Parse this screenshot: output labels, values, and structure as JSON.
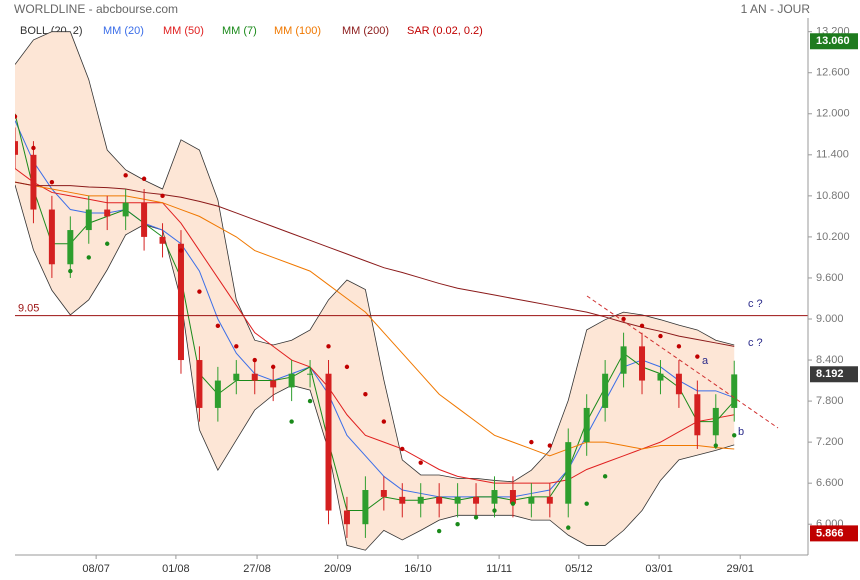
{
  "chart_data": {
    "type": "candlestick",
    "title": "WORLDLINE - abcbourse.com",
    "period": "1 AN - JOUR",
    "x": [
      0,
      4,
      8,
      12,
      16,
      20,
      24,
      28,
      32,
      36,
      40,
      44,
      48,
      52,
      56,
      60,
      64,
      68,
      72,
      76,
      80,
      84,
      88,
      92,
      96,
      100,
      104,
      108,
      112,
      116,
      120,
      124,
      128,
      132,
      136,
      140,
      144,
      148,
      152,
      156
    ],
    "xlim": [
      0,
      172
    ],
    "xticks": [
      {
        "value": 17.6,
        "label": "08/07"
      },
      {
        "value": 34.9,
        "label": "01/08"
      },
      {
        "value": 52.5,
        "label": "27/08"
      },
      {
        "value": 70,
        "label": "20/09"
      },
      {
        "value": 87.4,
        "label": "16/10"
      },
      {
        "value": 105,
        "label": "11/11"
      },
      {
        "value": 122.3,
        "label": "05/12"
      },
      {
        "value": 139.7,
        "label": "03/01"
      },
      {
        "value": 157.3,
        "label": "29/01"
      }
    ],
    "ylim": [
      5.55,
      13.4
    ],
    "yticks": [
      {
        "value": 13.2,
        "label": "13.200"
      },
      {
        "value": 12.6,
        "label": "12.600"
      },
      {
        "value": 12,
        "label": "12.000"
      },
      {
        "value": 11.4,
        "label": "11.400"
      },
      {
        "value": 10.8,
        "label": "10.800"
      },
      {
        "value": 10.2,
        "label": "10.200"
      },
      {
        "value": 9.6,
        "label": "9.600"
      },
      {
        "value": 9,
        "label": "9.000"
      },
      {
        "value": 8.4,
        "label": "8.400"
      },
      {
        "value": 7.8,
        "label": "7.800"
      },
      {
        "value": 7.2,
        "label": "7.200"
      },
      {
        "value": 6.6,
        "label": "6.600"
      },
      {
        "value": 6,
        "label": "6.000"
      }
    ],
    "up_color": "#2e9e2e",
    "down_color": "#d42020",
    "open": [
      11.6,
      11.4,
      10.6,
      9.8,
      10.3,
      10.6,
      10.5,
      10.7,
      10.2,
      10.1,
      8.4,
      7.7,
      8.1,
      8.2,
      8.1,
      8.0,
      8.2,
      8.2,
      6.2,
      6.0,
      6.5,
      6.4,
      6.3,
      6.4,
      6.3,
      6.4,
      6.3,
      6.5,
      6.3,
      6.4,
      6.3,
      7.2,
      7.7,
      8.2,
      8.6,
      8.1,
      8.2,
      7.9,
      7.3,
      7.7
    ],
    "high": [
      11.8,
      11.6,
      10.8,
      10.5,
      10.8,
      10.8,
      10.9,
      10.9,
      10.4,
      10.3,
      8.6,
      8.3,
      8.4,
      8.4,
      8.3,
      8.4,
      8.4,
      8.4,
      6.4,
      6.7,
      6.7,
      6.6,
      6.6,
      6.6,
      6.6,
      6.6,
      6.7,
      6.7,
      6.6,
      6.6,
      7.4,
      7.9,
      8.4,
      8.8,
      8.8,
      8.4,
      8.4,
      8.1,
      7.9,
      8.39
    ],
    "low": [
      11.2,
      10.4,
      9.6,
      9.6,
      10.1,
      10.3,
      10.3,
      10.0,
      9.9,
      8.2,
      7.5,
      7.5,
      7.9,
      7.9,
      7.8,
      7.8,
      8.0,
      6.0,
      5.8,
      5.8,
      6.2,
      6.1,
      6.1,
      6.1,
      6.1,
      6.1,
      6.1,
      6.1,
      6.1,
      6.1,
      6.1,
      7.0,
      7.5,
      8.0,
      7.9,
      7.9,
      7.7,
      7.1,
      7.1,
      7.5
    ],
    "close": [
      11.4,
      10.6,
      9.8,
      10.3,
      10.6,
      10.5,
      10.7,
      10.2,
      10.1,
      8.4,
      7.7,
      8.1,
      8.2,
      8.1,
      8.0,
      8.2,
      8.2,
      6.2,
      6.0,
      6.5,
      6.4,
      6.3,
      6.4,
      6.3,
      6.4,
      6.3,
      6.5,
      6.3,
      6.4,
      6.3,
      7.2,
      7.7,
      8.2,
      8.6,
      8.1,
      8.2,
      7.9,
      7.3,
      7.7,
      8.19
    ],
    "bollinger": {
      "name": "BOLL (20, 2)",
      "color": "#333333",
      "fill": "#fde6d6",
      "upper": [
        12.72,
        13.08,
        13.2,
        13.2,
        12.5,
        11.47,
        11.18,
        11.03,
        10.9,
        11.62,
        11.47,
        10.74,
        9.28,
        8.69,
        8.62,
        8.69,
        8.84,
        9.28,
        9.57,
        9.43,
        8.11,
        6.94,
        6.72,
        6.72,
        6.67,
        6.67,
        6.64,
        6.62,
        6.79,
        7.08,
        7.81,
        8.84,
        8.99,
        9.1,
        9.06,
        8.99,
        8.91,
        8.84,
        8.69,
        8.62
      ],
      "lower": [
        10.96,
        10.01,
        9.42,
        9.06,
        9.28,
        9.72,
        10.23,
        10.38,
        10.3,
        9.28,
        7.38,
        6.79,
        7.23,
        7.67,
        7.89,
        8.03,
        7.96,
        7.08,
        5.69,
        5.62,
        5.91,
        5.77,
        5.91,
        6.06,
        6.13,
        6.13,
        6.13,
        6.13,
        6.06,
        6.06,
        5.84,
        5.69,
        5.69,
        5.91,
        6.2,
        6.64,
        6.94,
        7.01,
        7.08,
        7.16
      ]
    },
    "series": [
      {
        "name": "MM (20)",
        "color": "#3b6ee8",
        "values": [
          11.9,
          11.3,
          10.9,
          10.6,
          10.55,
          10.55,
          10.6,
          10.4,
          10.3,
          10.1,
          9.7,
          9.0,
          8.5,
          8.2,
          8.1,
          8.2,
          8.3,
          7.9,
          7.3,
          7.0,
          6.7,
          6.5,
          6.45,
          6.4,
          6.4,
          6.4,
          6.4,
          6.4,
          6.45,
          6.5,
          6.8,
          7.3,
          7.8,
          8.3,
          8.4,
          8.3,
          8.1,
          7.95,
          7.95,
          7.85
        ]
      },
      {
        "name": "MM (50)",
        "color": "#e02020",
        "values": [
          11.2,
          11.0,
          10.85,
          10.8,
          10.75,
          10.7,
          10.7,
          10.7,
          10.7,
          10.4,
          10.0,
          9.6,
          9.2,
          8.8,
          8.6,
          8.4,
          8.3,
          8.0,
          7.6,
          7.3,
          7.2,
          7.1,
          6.95,
          6.8,
          6.7,
          6.65,
          6.6,
          6.6,
          6.6,
          6.6,
          6.65,
          6.8,
          6.9,
          7.0,
          7.1,
          7.2,
          7.35,
          7.5,
          7.55,
          7.6
        ]
      },
      {
        "name": "MM (7)",
        "color": "#1a8a1a",
        "values": [
          12.0,
          10.9,
          10.1,
          10.1,
          10.4,
          10.5,
          10.6,
          10.4,
          10.2,
          9.6,
          8.2,
          7.9,
          8.1,
          8.1,
          8.1,
          8.15,
          8.3,
          7.2,
          6.2,
          6.2,
          6.4,
          6.35,
          6.35,
          6.4,
          6.35,
          6.4,
          6.4,
          6.35,
          6.4,
          6.4,
          6.8,
          7.5,
          8.0,
          8.5,
          8.3,
          8.2,
          8.0,
          7.5,
          7.5,
          7.8
        ]
      },
      {
        "name": "MM (100)",
        "color": "#f07800",
        "values": [
          11.0,
          10.95,
          10.9,
          10.85,
          10.8,
          10.8,
          10.8,
          10.75,
          10.7,
          10.6,
          10.5,
          10.35,
          10.2,
          10.0,
          9.9,
          9.8,
          9.7,
          9.5,
          9.3,
          9.1,
          8.8,
          8.5,
          8.2,
          7.9,
          7.7,
          7.5,
          7.3,
          7.2,
          7.1,
          7.0,
          7.1,
          7.2,
          7.2,
          7.15,
          7.1,
          7.15,
          7.15,
          7.15,
          7.12,
          7.1
        ]
      },
      {
        "name": "MM (200)",
        "color": "#8b1a1a",
        "values": [
          11.0,
          10.95,
          10.95,
          10.95,
          10.93,
          10.92,
          10.9,
          10.85,
          10.82,
          10.78,
          10.72,
          10.65,
          10.55,
          10.45,
          10.35,
          10.25,
          10.15,
          10.05,
          9.95,
          9.85,
          9.75,
          9.68,
          9.6,
          9.52,
          9.45,
          9.4,
          9.35,
          9.3,
          9.25,
          9.2,
          9.15,
          9.1,
          9.03,
          8.95,
          8.88,
          8.82,
          8.75,
          8.7,
          8.65,
          8.6
        ]
      }
    ],
    "sar": {
      "name": "SAR (0.02, 0.2)",
      "color": "#c00000",
      "below_color": "#1a8a1a",
      "values": [
        11.96,
        11.5,
        11.0,
        9.7,
        9.9,
        10.1,
        11.1,
        11.05,
        10.8,
        10.0,
        9.4,
        8.9,
        8.6,
        8.4,
        8.3,
        7.5,
        7.8,
        8.6,
        8.3,
        7.9,
        7.5,
        7.1,
        6.9,
        5.9,
        6.0,
        6.1,
        6.2,
        6.3,
        7.2,
        7.15,
        5.95,
        6.3,
        6.7,
        9.0,
        8.9,
        8.75,
        8.6,
        8.45,
        7.15,
        7.3
      ]
    },
    "level": {
      "value": 9.05,
      "label": "9.05",
      "color": "#9b1010"
    },
    "price_markers": [
      {
        "value": 13.06,
        "label": "13.060",
        "color": "#1e7b1e"
      },
      {
        "value": 8.192,
        "label": "8.192",
        "color": "#3a3a3a"
      },
      {
        "value": 5.866,
        "label": "5.866",
        "color": "#c00000"
      }
    ],
    "annotations": [
      "c ?",
      "c ?",
      "a",
      "b"
    ]
  }
}
